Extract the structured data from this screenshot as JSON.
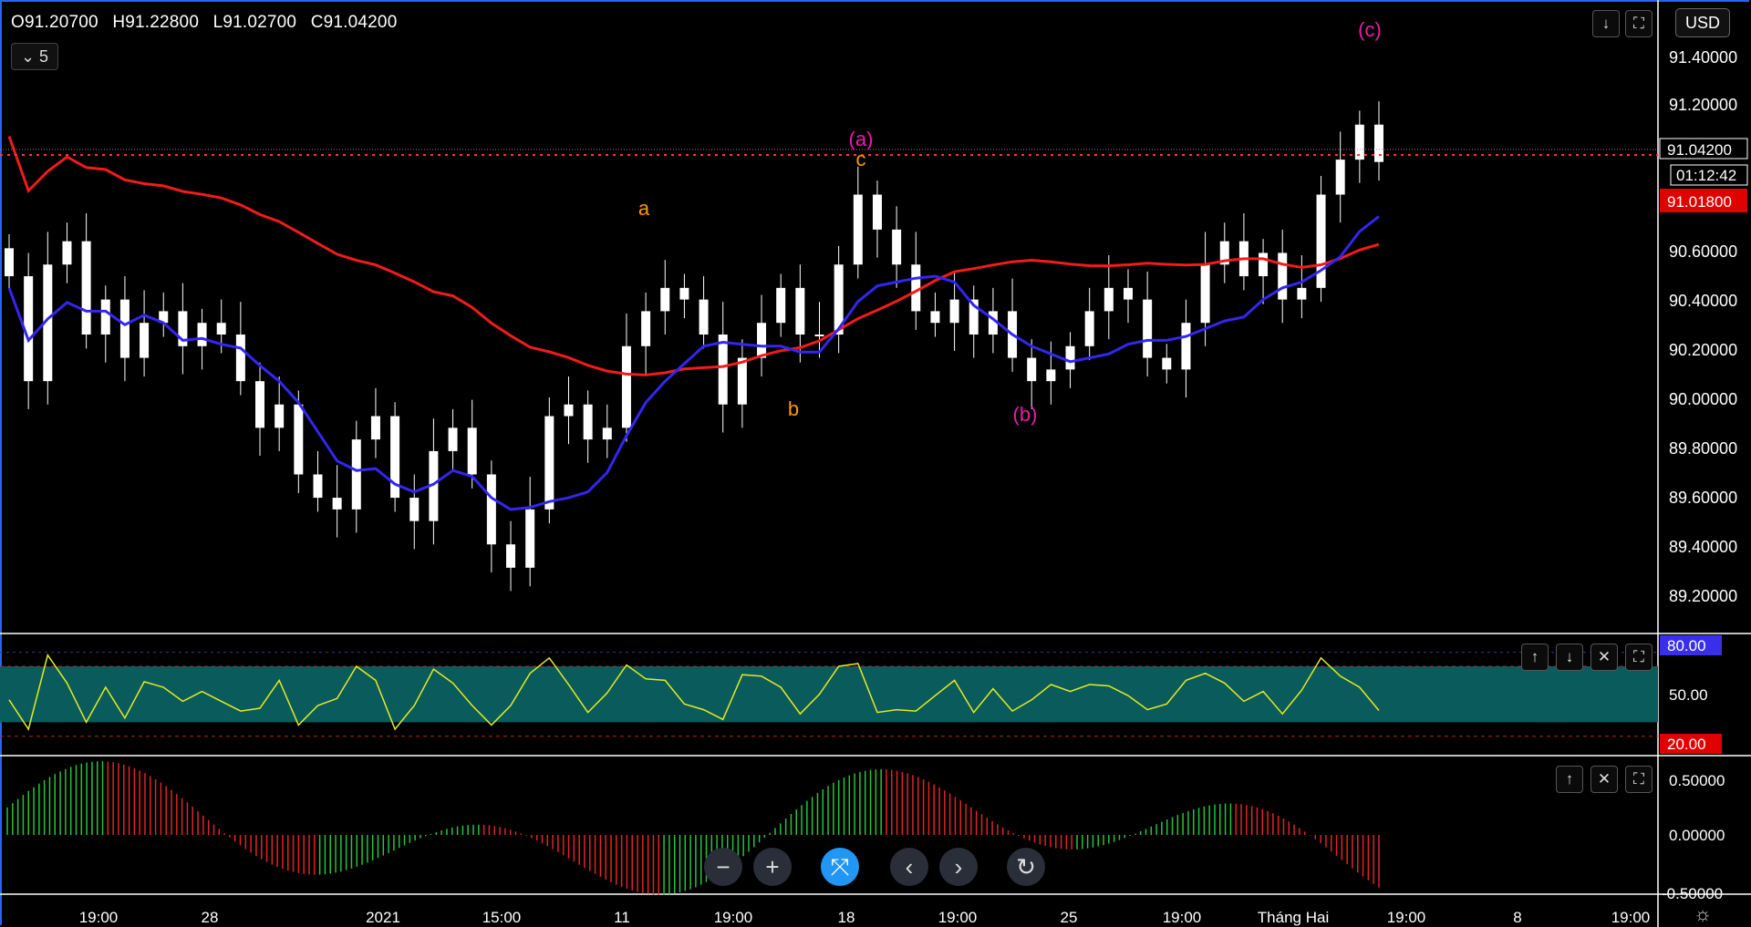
{
  "ohlc": {
    "open": "O91.20700",
    "high": "H91.22800",
    "low": "L91.02700",
    "close": "C91.04200"
  },
  "interval": {
    "chevron": "chevron-down-icon",
    "value": "5"
  },
  "currency": "USD",
  "price_panel": {
    "y_labels": [
      "91.40000",
      "91.20000",
      "90.60000",
      "90.40000",
      "90.20000",
      "90.00000",
      "89.80000",
      "89.60000",
      "89.40000",
      "89.20000"
    ],
    "last_price": "91.04200",
    "countdown": "01:12:42",
    "red_line_price": "91.01800",
    "annotations": [
      {
        "text": "(c)",
        "color": "#e91eaa"
      },
      {
        "text": "(a)",
        "color": "#e91eaa"
      },
      {
        "text": "c",
        "color": "#ff9800"
      },
      {
        "text": "a",
        "color": "#ff9800"
      },
      {
        "text": "b",
        "color": "#ff9800"
      },
      {
        "text": "(b)",
        "color": "#e91eaa"
      }
    ],
    "colors": {
      "ma_red": "#f21b1b",
      "ma_blue": "#3326f0",
      "candle": "#ffffff",
      "last_price_dotted": "#ff3333"
    }
  },
  "rsi_panel": {
    "labels": [
      "80.00",
      "50.00",
      "20.00"
    ],
    "band_color": "#0a5c5c",
    "line_color": "#e6ea1e"
  },
  "ao_panel": {
    "labels": [
      "0.50000",
      "0.00000",
      "-0.50000"
    ],
    "up_color": "#26c43a",
    "down_color": "#e22424"
  },
  "x_axis": [
    "19:00",
    "28",
    "2021",
    "15:00",
    "11",
    "19:00",
    "18",
    "19:00",
    "25",
    "19:00",
    "Tháng Hai",
    "19:00",
    "8",
    "19:00"
  ],
  "toolbar_icons": {
    "price_panel": [
      "arrow-down-icon",
      "maximize-icon"
    ],
    "rsi_panel": [
      "arrow-up-icon",
      "arrow-down-icon",
      "close-icon",
      "maximize-icon"
    ],
    "ao_panel": [
      "arrow-up-icon",
      "close-icon",
      "maximize-icon"
    ]
  },
  "navigation": [
    "zoom-out-icon",
    "zoom-in-icon",
    "reset-zoom-icon",
    "scroll-left-icon",
    "scroll-right-icon",
    "reset-chart-icon"
  ],
  "chart_data": [
    {
      "type": "candlestick",
      "title": "",
      "ylim": [
        89.1,
        91.5
      ],
      "close_series": [
        90.55,
        90.1,
        90.6,
        90.7,
        90.3,
        90.45,
        90.2,
        90.35,
        90.4,
        90.25,
        90.35,
        90.3,
        90.1,
        89.9,
        90.0,
        89.7,
        89.6,
        89.55,
        89.85,
        89.95,
        89.6,
        89.5,
        89.8,
        89.9,
        89.7,
        89.4,
        89.3,
        89.55,
        89.95,
        90.0,
        89.85,
        89.9,
        90.25,
        90.4,
        90.5,
        90.45,
        90.3,
        90.0,
        90.2,
        90.35,
        90.5,
        90.3,
        90.3,
        90.6,
        90.9,
        90.75,
        90.6,
        90.4,
        90.35,
        90.45,
        90.3,
        90.4,
        90.2,
        90.1,
        90.15,
        90.25,
        90.4,
        90.5,
        90.45,
        90.2,
        90.15,
        90.35,
        90.6,
        90.7,
        90.55,
        90.65,
        90.45,
        90.5,
        90.9,
        91.05,
        91.2,
        91.04
      ]
    },
    {
      "type": "line",
      "name": "",
      "values": []
    },
    {
      "type": "bar",
      "name": "",
      "values": []
    }
  ]
}
